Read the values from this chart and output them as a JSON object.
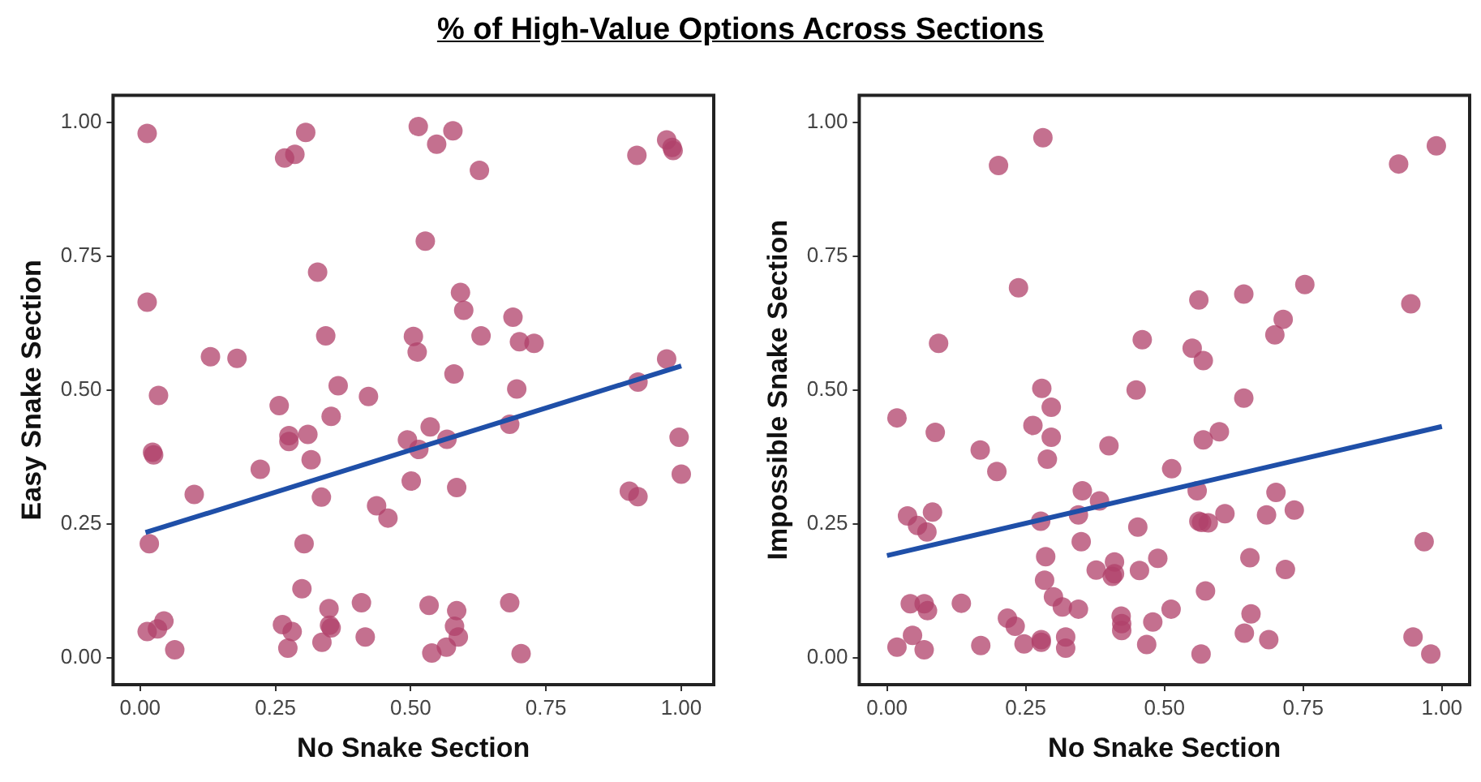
{
  "chart_data": [
    {
      "type": "scatter",
      "title": "% of High-Value Options Across Sections",
      "xlabel": "No Snake Section",
      "ylabel": "Easy Snake Section",
      "xlim": [
        -0.05,
        1.06
      ],
      "ylim": [
        -0.05,
        1.05
      ],
      "xticks": [
        {
          "value": 0,
          "label": "0.00"
        },
        {
          "value": 0.25,
          "label": "0.25"
        },
        {
          "value": 0.5,
          "label": "0.50"
        },
        {
          "value": 0.75,
          "label": "0.75"
        },
        {
          "value": 1,
          "label": "1.00"
        }
      ],
      "yticks": [
        {
          "value": 0,
          "label": "0.00"
        },
        {
          "value": 0.25,
          "label": "0.25"
        },
        {
          "value": 0.5,
          "label": "0.50"
        },
        {
          "value": 0.75,
          "label": "0.75"
        },
        {
          "value": 1,
          "label": "1.00"
        }
      ],
      "grid": false,
      "legend": false,
      "marker": "circle",
      "series": [
        {
          "type": "scatter",
          "color": "#b0406a",
          "x": [
            0.013,
            0.013,
            0.267,
            0.286,
            0.306,
            0.514,
            0.548,
            0.578,
            0.627,
            0.918,
            0.973,
            0.983,
            0.985,
            0.527,
            0.328,
            0.592,
            0.598,
            0.689,
            0.343,
            0.505,
            0.512,
            0.63,
            0.701,
            0.728,
            0.13,
            0.179,
            0.973,
            0.034,
            0.366,
            0.422,
            0.58,
            0.696,
            0.92,
            0.257,
            0.353,
            0.275,
            0.275,
            0.31,
            0.316,
            0.023,
            0.025,
            0.222,
            0.1,
            0.335,
            0.494,
            0.515,
            0.536,
            0.567,
            0.683,
            0.501,
            0.585,
            0.437,
            0.458,
            0.996,
            1.0,
            0.904,
            0.92,
            0.017,
            0.303,
            0.299,
            0.349,
            0.409,
            0.534,
            0.585,
            0.683,
            0.013,
            0.032,
            0.044,
            0.064,
            0.263,
            0.281,
            0.273,
            0.336,
            0.353,
            0.35,
            0.416,
            0.539,
            0.566,
            0.581,
            0.588,
            0.704
          ],
          "values": [
            0.979,
            0.664,
            0.933,
            0.94,
            0.981,
            0.992,
            0.959,
            0.984,
            0.91,
            0.938,
            0.967,
            0.953,
            0.947,
            0.778,
            0.72,
            0.682,
            0.649,
            0.636,
            0.601,
            0.6,
            0.571,
            0.601,
            0.59,
            0.587,
            0.562,
            0.559,
            0.558,
            0.49,
            0.508,
            0.488,
            0.53,
            0.502,
            0.515,
            0.471,
            0.451,
            0.415,
            0.404,
            0.417,
            0.37,
            0.384,
            0.379,
            0.352,
            0.305,
            0.3,
            0.407,
            0.389,
            0.431,
            0.408,
            0.436,
            0.33,
            0.318,
            0.284,
            0.261,
            0.412,
            0.343,
            0.311,
            0.301,
            0.213,
            0.213,
            0.129,
            0.092,
            0.103,
            0.098,
            0.088,
            0.103,
            0.049,
            0.054,
            0.069,
            0.015,
            0.062,
            0.049,
            0.018,
            0.029,
            0.056,
            0.061,
            0.039,
            0.009,
            0.02,
            0.059,
            0.039,
            0.008
          ]
        },
        {
          "type": "line",
          "color": "#1f4fa8",
          "marker": "none",
          "line_style": "solid",
          "x": [
            0.01,
            1.0
          ],
          "values": [
            0.234,
            0.545
          ]
        }
      ]
    },
    {
      "type": "scatter",
      "xlabel": "No Snake Section",
      "ylabel": "Impossible Snake Section",
      "xlim": [
        -0.05,
        1.05
      ],
      "ylim": [
        -0.05,
        1.05
      ],
      "xticks": [
        {
          "value": 0,
          "label": "0.00"
        },
        {
          "value": 0.25,
          "label": "0.25"
        },
        {
          "value": 0.5,
          "label": "0.50"
        },
        {
          "value": 0.75,
          "label": "0.75"
        },
        {
          "value": 1,
          "label": "1.00"
        }
      ],
      "yticks": [
        {
          "value": 0,
          "label": "0.00"
        },
        {
          "value": 0.25,
          "label": "0.25"
        },
        {
          "value": 0.5,
          "label": "0.50"
        },
        {
          "value": 0.75,
          "label": "0.75"
        },
        {
          "value": 1,
          "label": "1.00"
        }
      ],
      "grid": false,
      "legend": false,
      "marker": "circle",
      "series": [
        {
          "type": "scatter",
          "color": "#b0406a",
          "x": [
            0.281,
            0.201,
            0.922,
            0.99,
            0.237,
            0.562,
            0.643,
            0.753,
            0.944,
            0.714,
            0.699,
            0.093,
            0.46,
            0.55,
            0.57,
            0.279,
            0.449,
            0.643,
            0.018,
            0.087,
            0.263,
            0.296,
            0.296,
            0.289,
            0.168,
            0.198,
            0.4,
            0.513,
            0.57,
            0.599,
            0.352,
            0.383,
            0.345,
            0.277,
            0.559,
            0.562,
            0.567,
            0.579,
            0.609,
            0.701,
            0.734,
            0.684,
            0.037,
            0.055,
            0.072,
            0.082,
            0.452,
            0.35,
            0.968,
            0.286,
            0.488,
            0.654,
            0.41,
            0.377,
            0.406,
            0.41,
            0.455,
            0.718,
            0.284,
            0.3,
            0.316,
            0.345,
            0.574,
            0.042,
            0.067,
            0.073,
            0.134,
            0.217,
            0.231,
            0.422,
            0.423,
            0.423,
            0.479,
            0.512,
            0.656,
            0.644,
            0.688,
            0.948,
            0.98,
            0.018,
            0.046,
            0.067,
            0.169,
            0.247,
            0.278,
            0.278,
            0.322,
            0.322,
            0.468,
            0.566
          ],
          "values": [
            0.971,
            0.919,
            0.922,
            0.956,
            0.691,
            0.668,
            0.679,
            0.697,
            0.661,
            0.632,
            0.603,
            0.587,
            0.594,
            0.578,
            0.555,
            0.503,
            0.5,
            0.485,
            0.448,
            0.421,
            0.434,
            0.468,
            0.412,
            0.371,
            0.388,
            0.348,
            0.396,
            0.353,
            0.407,
            0.422,
            0.312,
            0.293,
            0.267,
            0.255,
            0.312,
            0.255,
            0.253,
            0.252,
            0.269,
            0.309,
            0.276,
            0.267,
            0.265,
            0.247,
            0.235,
            0.272,
            0.244,
            0.217,
            0.217,
            0.189,
            0.186,
            0.187,
            0.179,
            0.164,
            0.152,
            0.157,
            0.163,
            0.165,
            0.145,
            0.114,
            0.095,
            0.091,
            0.125,
            0.101,
            0.101,
            0.088,
            0.102,
            0.074,
            0.059,
            0.078,
            0.064,
            0.051,
            0.067,
            0.091,
            0.082,
            0.046,
            0.034,
            0.039,
            0.007,
            0.02,
            0.042,
            0.015,
            0.023,
            0.026,
            0.034,
            0.029,
            0.039,
            0.018,
            0.025,
            0.007
          ]
        },
        {
          "type": "line",
          "color": "#1f4fa8",
          "marker": "none",
          "line_style": "solid",
          "x": [
            0.0,
            1.0
          ],
          "values": [
            0.191,
            0.432
          ]
        }
      ]
    }
  ]
}
